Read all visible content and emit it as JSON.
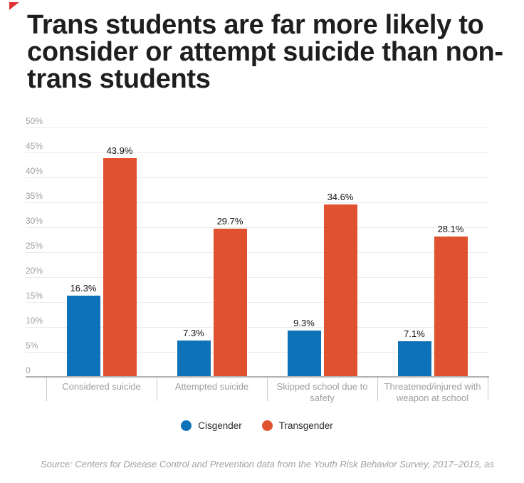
{
  "header": {
    "title": "Trans students are far more likely to consider or attempt suicide than non-trans students"
  },
  "footer": {
    "source": "Source: Centers for Disease Control and Prevention data from the Youth Risk Behavior Survey, 2017–2019, as"
  },
  "legend": {
    "items": [
      {
        "label": "Cisgender",
        "color": "#0e72b8"
      },
      {
        "label": "Transgender",
        "color": "#e0522f"
      }
    ]
  },
  "decorations": {
    "corner_triangle_color": "#e23535"
  },
  "chart_data": {
    "type": "bar",
    "title": "Trans students are far more likely to consider or attempt suicide than non-trans students",
    "categories": [
      "Considered suicide",
      "Attempted suicide",
      "Skipped school due to safety",
      "Threatened/injured with weapon at school"
    ],
    "series": [
      {
        "name": "Cisgender",
        "color": "#0e72b8",
        "values": [
          16.3,
          7.3,
          9.3,
          7.1
        ],
        "labels": [
          "16.3%",
          "7.3%",
          "9.3%",
          "7.1%"
        ]
      },
      {
        "name": "Transgender",
        "color": "#e0522f",
        "values": [
          43.9,
          29.7,
          34.6,
          28.1
        ],
        "labels": [
          "43.9%",
          "29.7%",
          "34.6%",
          "28.1%"
        ]
      }
    ],
    "xlabel": "",
    "ylabel": "",
    "ylim": [
      0,
      50
    ],
    "ytick_step": 5,
    "ytick_labels": [
      "0",
      "5%",
      "10%",
      "15%",
      "20%",
      "25%",
      "30%",
      "35%",
      "40%",
      "45%",
      "50%"
    ],
    "grid": true,
    "legend_position": "bottom"
  },
  "colors": {
    "bar_blue": "#0e72b8",
    "bar_orange": "#e0522f",
    "gridline": "#ebebeb",
    "axis_line": "#b2b2b2",
    "tick": "#c9c9c9",
    "axis_label": "#9e9e9e",
    "category_label": "#9e9e9e",
    "value_label": "#111111",
    "legend_text": "#2a2a2a",
    "title_text": "#1e1e1e",
    "source_text": "#9aa1a8",
    "background": "#ffffff"
  }
}
